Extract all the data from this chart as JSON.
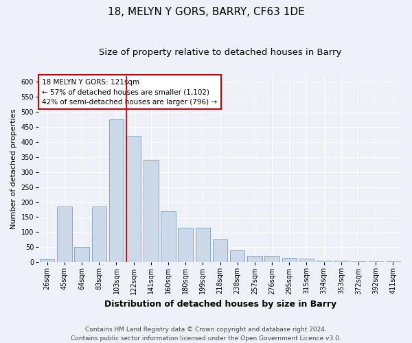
{
  "title": "18, MELYN Y GORS, BARRY, CF63 1DE",
  "subtitle": "Size of property relative to detached houses in Barry",
  "xlabel": "Distribution of detached houses by size in Barry",
  "ylabel": "Number of detached properties",
  "categories": [
    "26sqm",
    "45sqm",
    "64sqm",
    "83sqm",
    "103sqm",
    "122sqm",
    "141sqm",
    "160sqm",
    "180sqm",
    "199sqm",
    "218sqm",
    "238sqm",
    "257sqm",
    "276sqm",
    "295sqm",
    "315sqm",
    "334sqm",
    "353sqm",
    "372sqm",
    "392sqm",
    "411sqm"
  ],
  "values": [
    10,
    185,
    50,
    185,
    475,
    420,
    340,
    170,
    115,
    115,
    75,
    40,
    20,
    20,
    15,
    12,
    5,
    5,
    3,
    3,
    3
  ],
  "bar_color": "#ccd9e8",
  "bar_edge_color": "#7aa0c0",
  "annotation_line1": "18 MELYN Y GORS: 121sqm",
  "annotation_line2": "← 57% of detached houses are smaller (1,102)",
  "annotation_line3": "42% of semi-detached houses are larger (796) →",
  "annotation_box_facecolor": "#ffffff",
  "annotation_box_edgecolor": "#cc0000",
  "vline_color": "#cc0000",
  "vline_x_index": 5,
  "ylim": [
    0,
    620
  ],
  "yticks": [
    0,
    50,
    100,
    150,
    200,
    250,
    300,
    350,
    400,
    450,
    500,
    550,
    600
  ],
  "footer_line1": "Contains HM Land Registry data © Crown copyright and database right 2024.",
  "footer_line2": "Contains public sector information licensed under the Open Government Licence v3.0.",
  "background_color": "#eef2f8",
  "plot_background": "#eef2f8",
  "grid_color": "#ffffff",
  "title_fontsize": 11,
  "subtitle_fontsize": 9.5,
  "xlabel_fontsize": 9,
  "ylabel_fontsize": 8,
  "tick_fontsize": 7,
  "annotation_fontsize": 7.5,
  "footer_fontsize": 6.5
}
